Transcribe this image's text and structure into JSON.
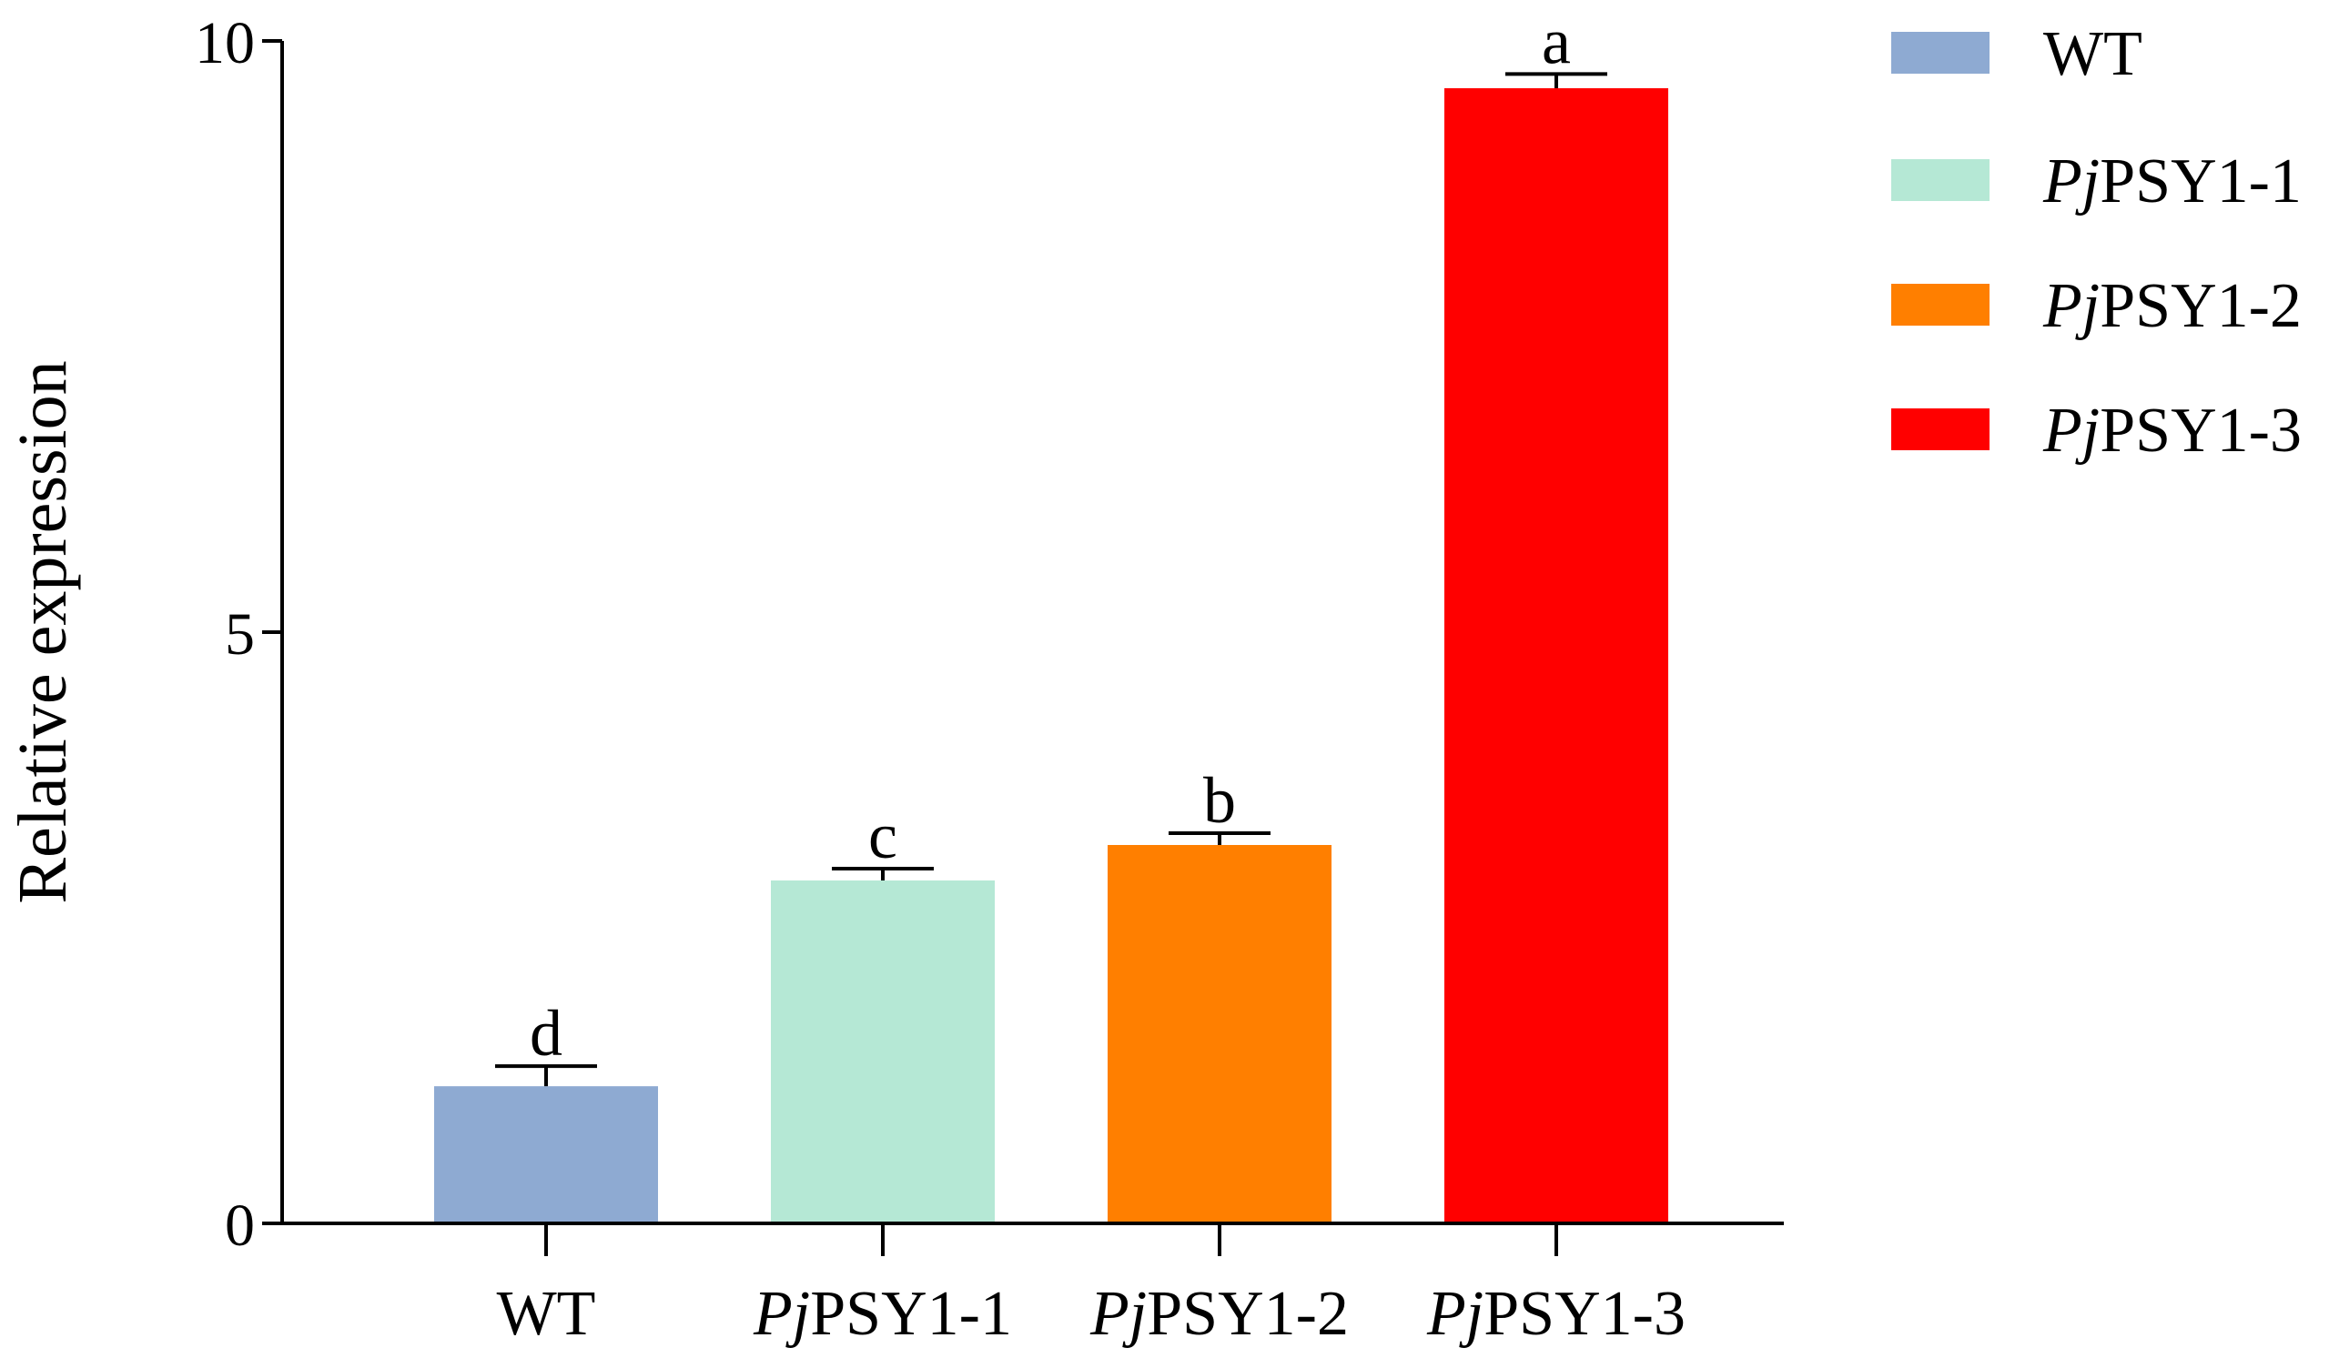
{
  "chart_data": {
    "type": "bar",
    "ylabel": "Relative expression",
    "xlabel": "",
    "ylim": [
      0,
      10
    ],
    "yticks": [
      0,
      5,
      10
    ],
    "grid": false,
    "legend_position": "right",
    "categories": [
      {
        "prefix": "",
        "rest": "WT"
      },
      {
        "prefix": "Pj",
        "rest": "PSY1-1"
      },
      {
        "prefix": "Pj",
        "rest": "PSY1-2"
      },
      {
        "prefix": "Pj",
        "rest": "PSY1-3"
      }
    ],
    "values": [
      1.16,
      2.9,
      3.2,
      9.6
    ],
    "errors": [
      0.17,
      0.1,
      0.1,
      0.12
    ],
    "significance_letters": [
      "d",
      "c",
      "b",
      "a"
    ],
    "colors": [
      "#8eaad2",
      "#b5e8d5",
      "#ff7f00",
      "#ff0000"
    ],
    "legend": [
      {
        "prefix": "",
        "rest": "WT",
        "color": "#8eaad2"
      },
      {
        "prefix": "Pj",
        "rest": "PSY1-1",
        "color": "#b5e8d5"
      },
      {
        "prefix": "Pj",
        "rest": "PSY1-2",
        "color": "#ff7f00"
      },
      {
        "prefix": "Pj",
        "rest": "PSY1-3",
        "color": "#ff0000"
      }
    ]
  }
}
